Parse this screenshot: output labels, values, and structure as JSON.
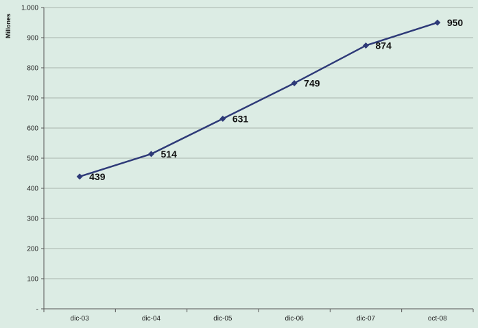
{
  "chart_data": {
    "type": "line",
    "categories": [
      "dic-03",
      "dic-04",
      "dic-05",
      "dic-06",
      "dic-07",
      "oct-08"
    ],
    "series": [
      {
        "values": [
          439,
          514,
          631,
          749,
          874,
          950
        ]
      }
    ],
    "data_labels": [
      "439",
      "514",
      "631",
      "749",
      "874",
      "950"
    ],
    "ylabel": "Millones",
    "xlabel": "",
    "title": "",
    "ylim": [
      0,
      1000
    ],
    "y_ticks": [
      0,
      100,
      200,
      300,
      400,
      500,
      600,
      700,
      800,
      900,
      1000
    ],
    "y_tick_labels": [
      "-",
      "100",
      "200",
      "300",
      "400",
      "500",
      "600",
      "700",
      "800",
      "900",
      "1.000"
    ],
    "grid": true,
    "legend": "none",
    "colors": {
      "line": "#2e3a78",
      "grid": "#a9b3ad",
      "background": "#dcece4"
    },
    "marker": "diamond"
  }
}
